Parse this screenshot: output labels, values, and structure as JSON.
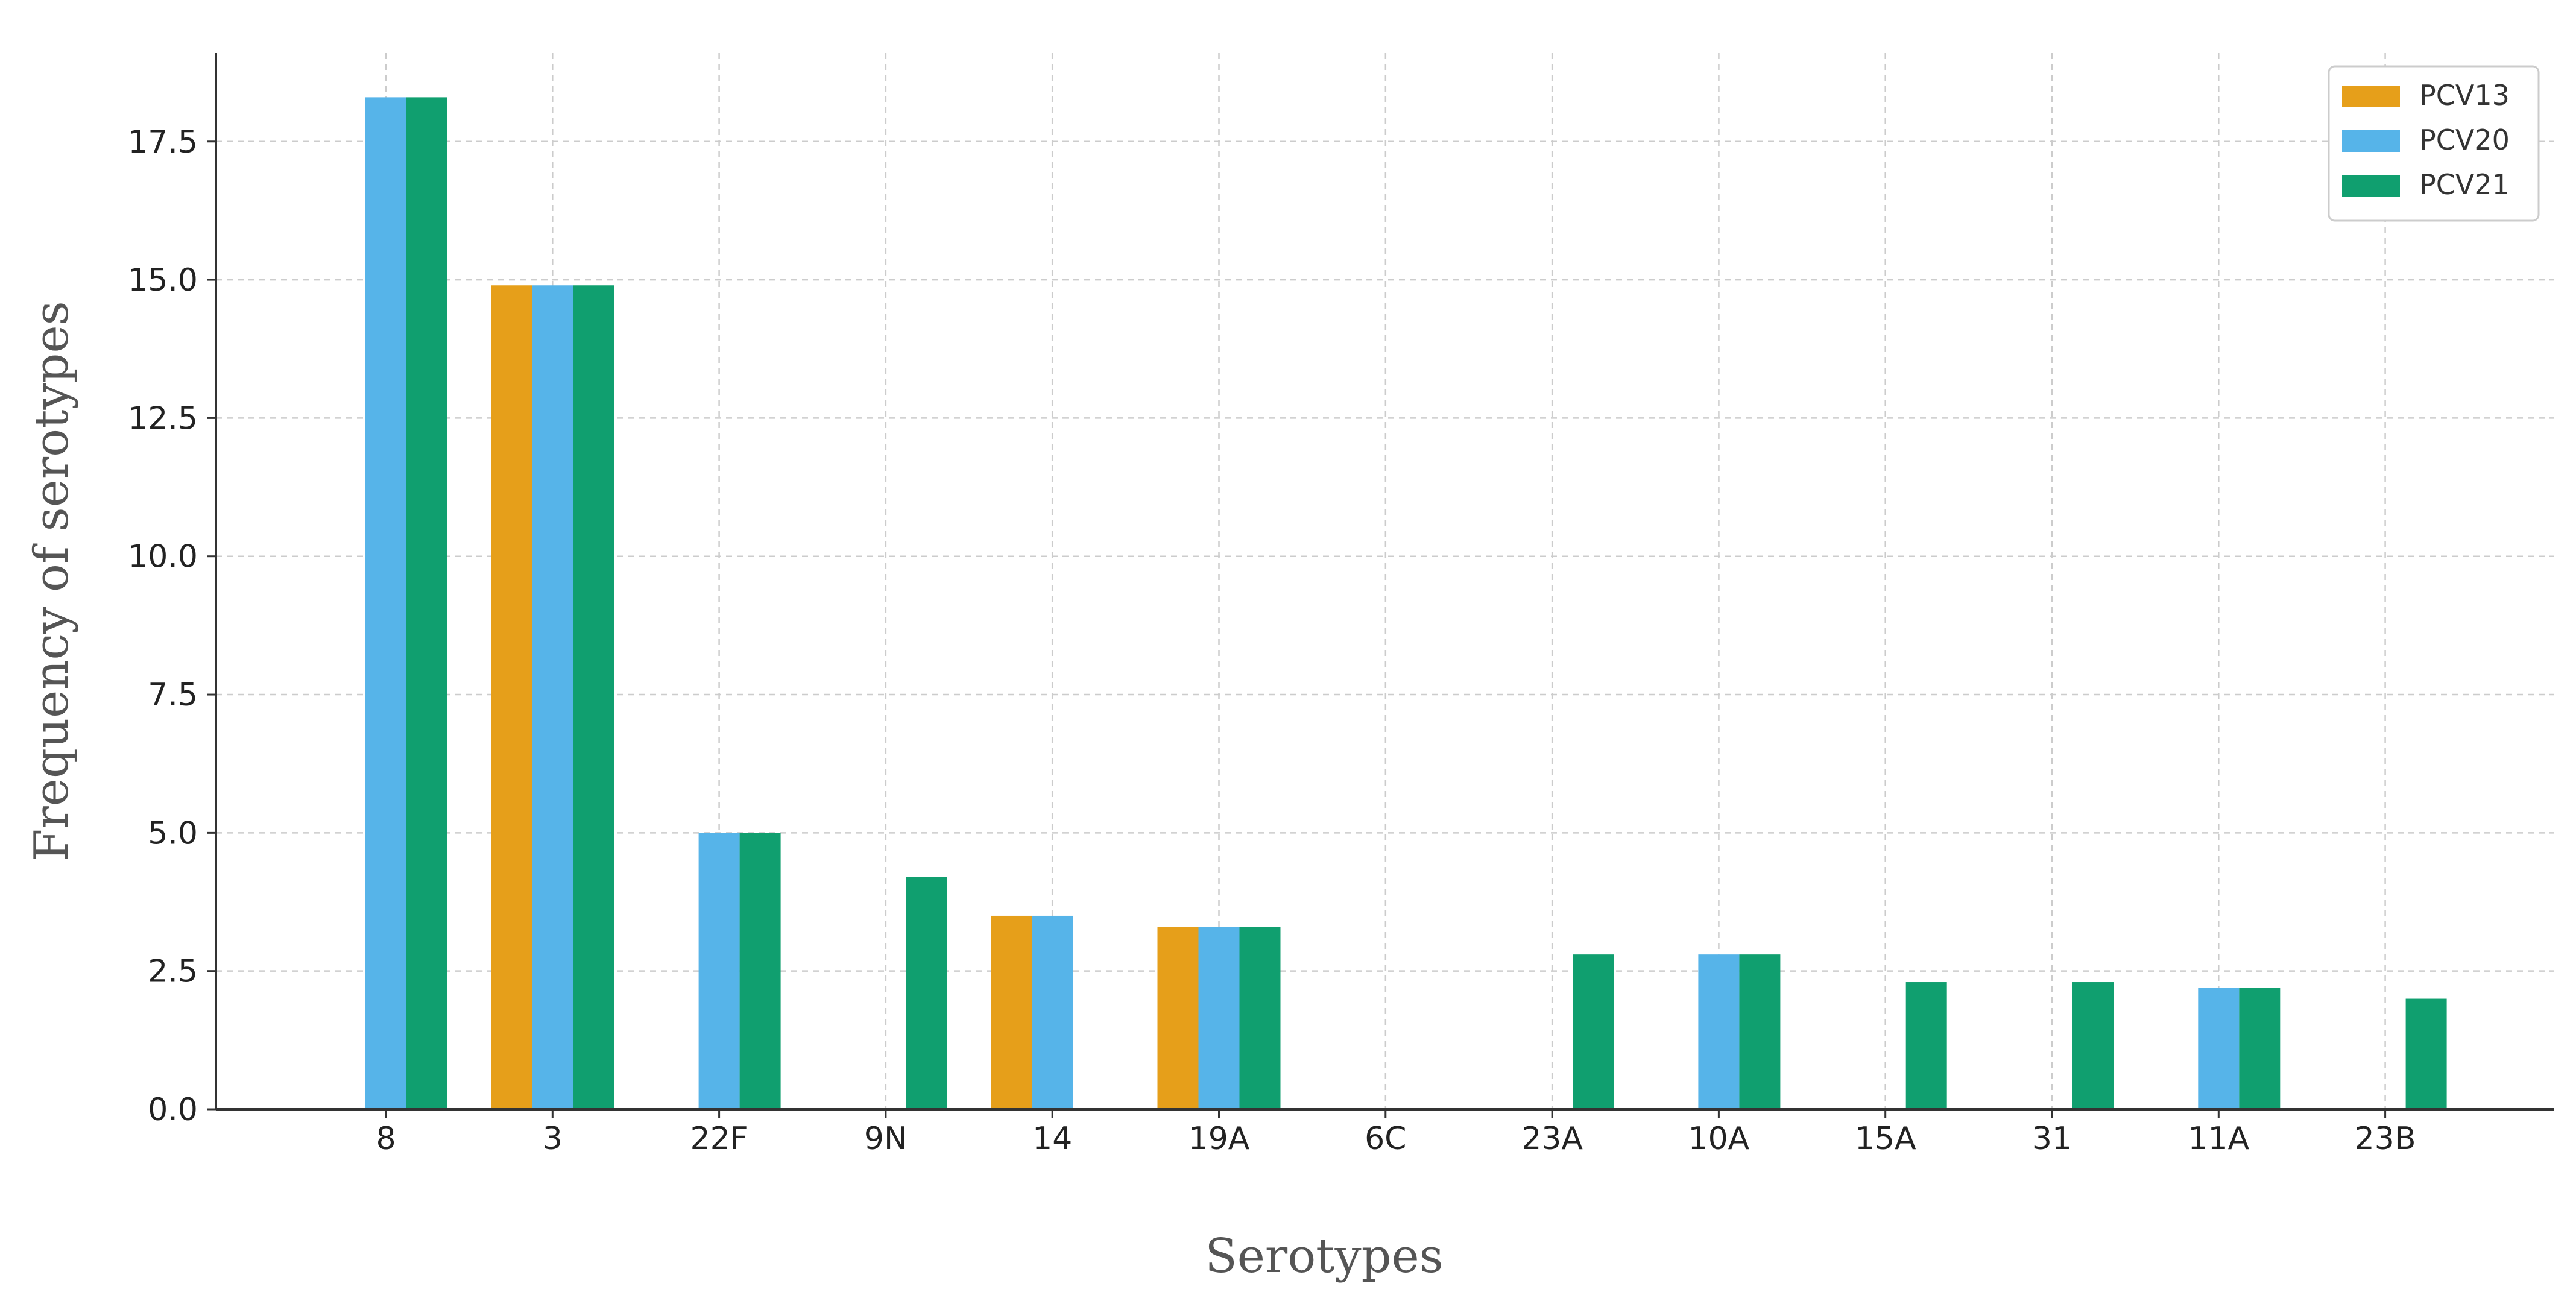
{
  "chart_data": {
    "type": "bar",
    "title": "",
    "xlabel": "Serotypes",
    "ylabel": "Frequency of serotypes",
    "categories": [
      "8",
      "3",
      "22F",
      "9N",
      "14",
      "19A",
      "6C",
      "23A",
      "10A",
      "15A",
      "31",
      "11A",
      "23B"
    ],
    "series": [
      {
        "name": "PCV13",
        "color": "#E69F1A",
        "values": [
          0,
          14.9,
          0,
          0,
          3.5,
          3.3,
          0,
          0,
          0,
          0,
          0,
          0,
          0
        ]
      },
      {
        "name": "PCV20",
        "color": "#56B4E9",
        "values": [
          18.3,
          14.9,
          5.0,
          0,
          3.5,
          3.3,
          0,
          0,
          2.8,
          0,
          0,
          2.2,
          0
        ]
      },
      {
        "name": "PCV21",
        "color": "#109F6F",
        "values": [
          18.3,
          14.9,
          5.0,
          4.2,
          0,
          3.3,
          0,
          2.8,
          2.8,
          2.3,
          2.3,
          2.2,
          2.0
        ]
      }
    ],
    "ylim": [
      0,
      19.1
    ],
    "yticks": [
      "0.0",
      "2.5",
      "5.0",
      "7.5",
      "10.0",
      "12.5",
      "15.0",
      "17.5"
    ],
    "grid": true,
    "legend": "top-right"
  }
}
